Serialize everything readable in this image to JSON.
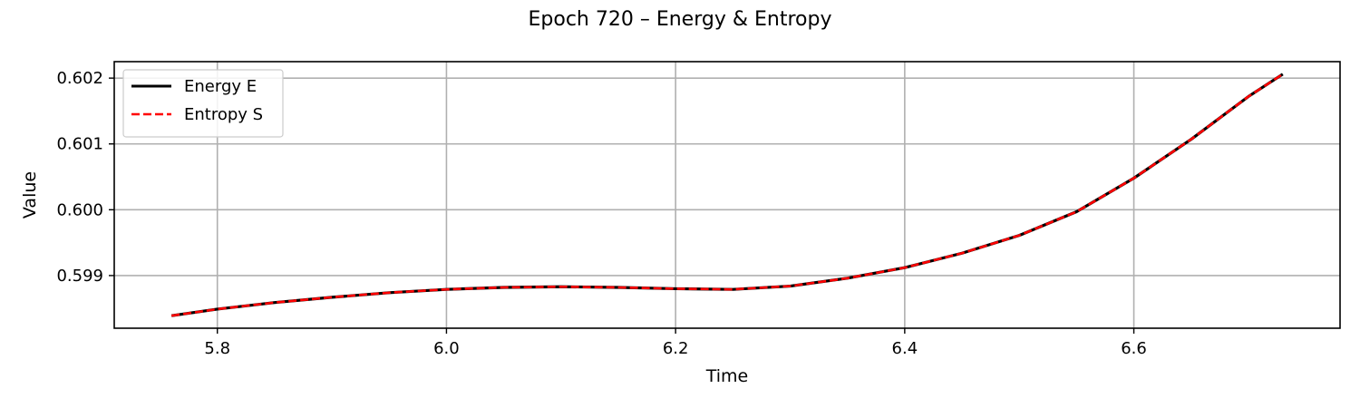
{
  "chart_data": {
    "type": "line",
    "title": "Epoch 720 – Energy & Entropy",
    "xlabel": "Time",
    "ylabel": "Value",
    "xlim": [
      5.71,
      6.78
    ],
    "ylim": [
      0.5982,
      0.60225
    ],
    "xticks": [
      5.8,
      6.0,
      6.2,
      6.4,
      6.6
    ],
    "xtick_labels": [
      "5.8",
      "6.0",
      "6.2",
      "6.4",
      "6.6"
    ],
    "yticks": [
      0.599,
      0.6,
      0.601,
      0.602
    ],
    "ytick_labels": [
      "0.599",
      "0.600",
      "0.601",
      "0.602"
    ],
    "grid": true,
    "legend_position": "top-left",
    "x": [
      5.76,
      5.8,
      5.85,
      5.9,
      5.95,
      6.0,
      6.05,
      6.1,
      6.15,
      6.2,
      6.25,
      6.3,
      6.35,
      6.4,
      6.45,
      6.5,
      6.55,
      6.6,
      6.65,
      6.7,
      6.73
    ],
    "series": [
      {
        "name": "Energy E",
        "color": "#000000",
        "style": "solid",
        "values": [
          0.59839,
          0.59849,
          0.59859,
          0.59867,
          0.59874,
          0.59879,
          0.59882,
          0.59883,
          0.59882,
          0.5988,
          0.59879,
          0.59884,
          0.59896,
          0.59912,
          0.59934,
          0.59961,
          0.59997,
          0.60048,
          0.60107,
          0.60172,
          0.60206
        ]
      },
      {
        "name": "Entropy S",
        "color": "#ff0000",
        "style": "dashed",
        "values": [
          0.59839,
          0.59849,
          0.59859,
          0.59867,
          0.59874,
          0.59879,
          0.59882,
          0.59883,
          0.59882,
          0.5988,
          0.59879,
          0.59884,
          0.59896,
          0.59912,
          0.59934,
          0.59961,
          0.59997,
          0.60048,
          0.60107,
          0.60172,
          0.60206
        ]
      }
    ]
  }
}
